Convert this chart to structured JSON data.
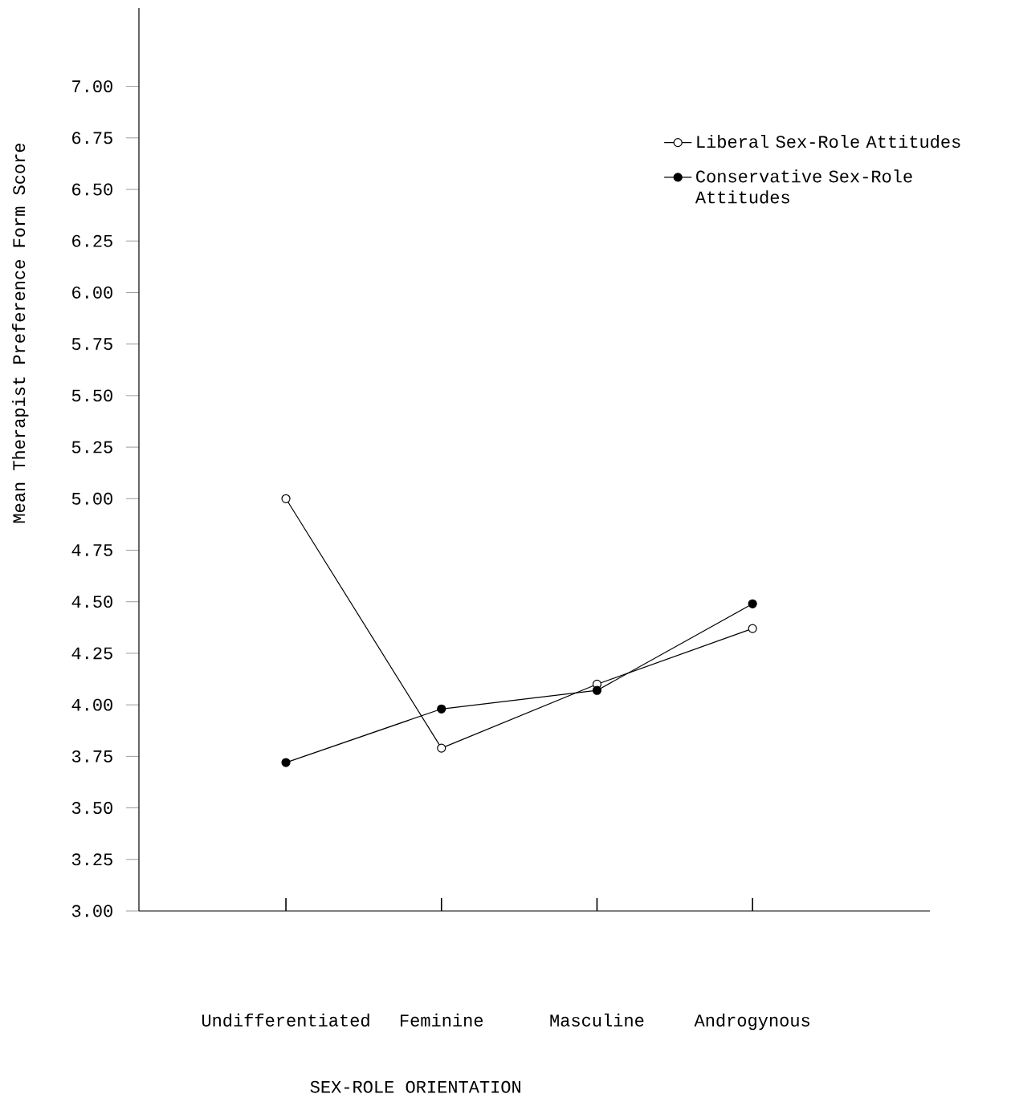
{
  "chart_data": {
    "type": "line",
    "categories": [
      "Undifferentiated",
      "Feminine",
      "Masculine",
      "Androgynous"
    ],
    "xlabel": "SEX-ROLE ORIENTATION",
    "ylabel": "Mean Therapist Preference Form Score",
    "series": [
      {
        "name": "Liberal Sex-Role Attitudes",
        "color": "#000000",
        "values": [
          5.0,
          3.79,
          4.1,
          4.37
        ]
      },
      {
        "name": "Conservative Sex-Role Attitudes",
        "color": "#000000",
        "values": [
          3.72,
          3.98,
          4.07,
          4.49
        ]
      }
    ],
    "ylim": [
      3,
      7.38
    ],
    "yticks": [
      {
        "value": 3,
        "label": "3.00"
      },
      {
        "value": 3.25,
        "label": "3.25"
      },
      {
        "value": 3.5,
        "label": "3.50"
      },
      {
        "value": 3.75,
        "label": "3.75"
      },
      {
        "value": 4,
        "label": "4.00"
      },
      {
        "value": 4.25,
        "label": "4.25"
      },
      {
        "value": 4.5,
        "label": "4.50"
      },
      {
        "value": 4.75,
        "label": "4.75"
      },
      {
        "value": 5,
        "label": "5.00"
      },
      {
        "value": 5.25,
        "label": "5.25"
      },
      {
        "value": 5.5,
        "label": "5.50"
      },
      {
        "value": 5.75,
        "label": "5.75"
      },
      {
        "value": 6,
        "label": "6.00"
      },
      {
        "value": 6.25,
        "label": "6.25"
      },
      {
        "value": 6.5,
        "label": "6.50"
      },
      {
        "value": 6.75,
        "label": "6.75"
      },
      {
        "value": 7,
        "label": "7.00"
      }
    ],
    "legend": "top right",
    "marker": "circle",
    "line_style": "solid",
    "grid": false
  }
}
